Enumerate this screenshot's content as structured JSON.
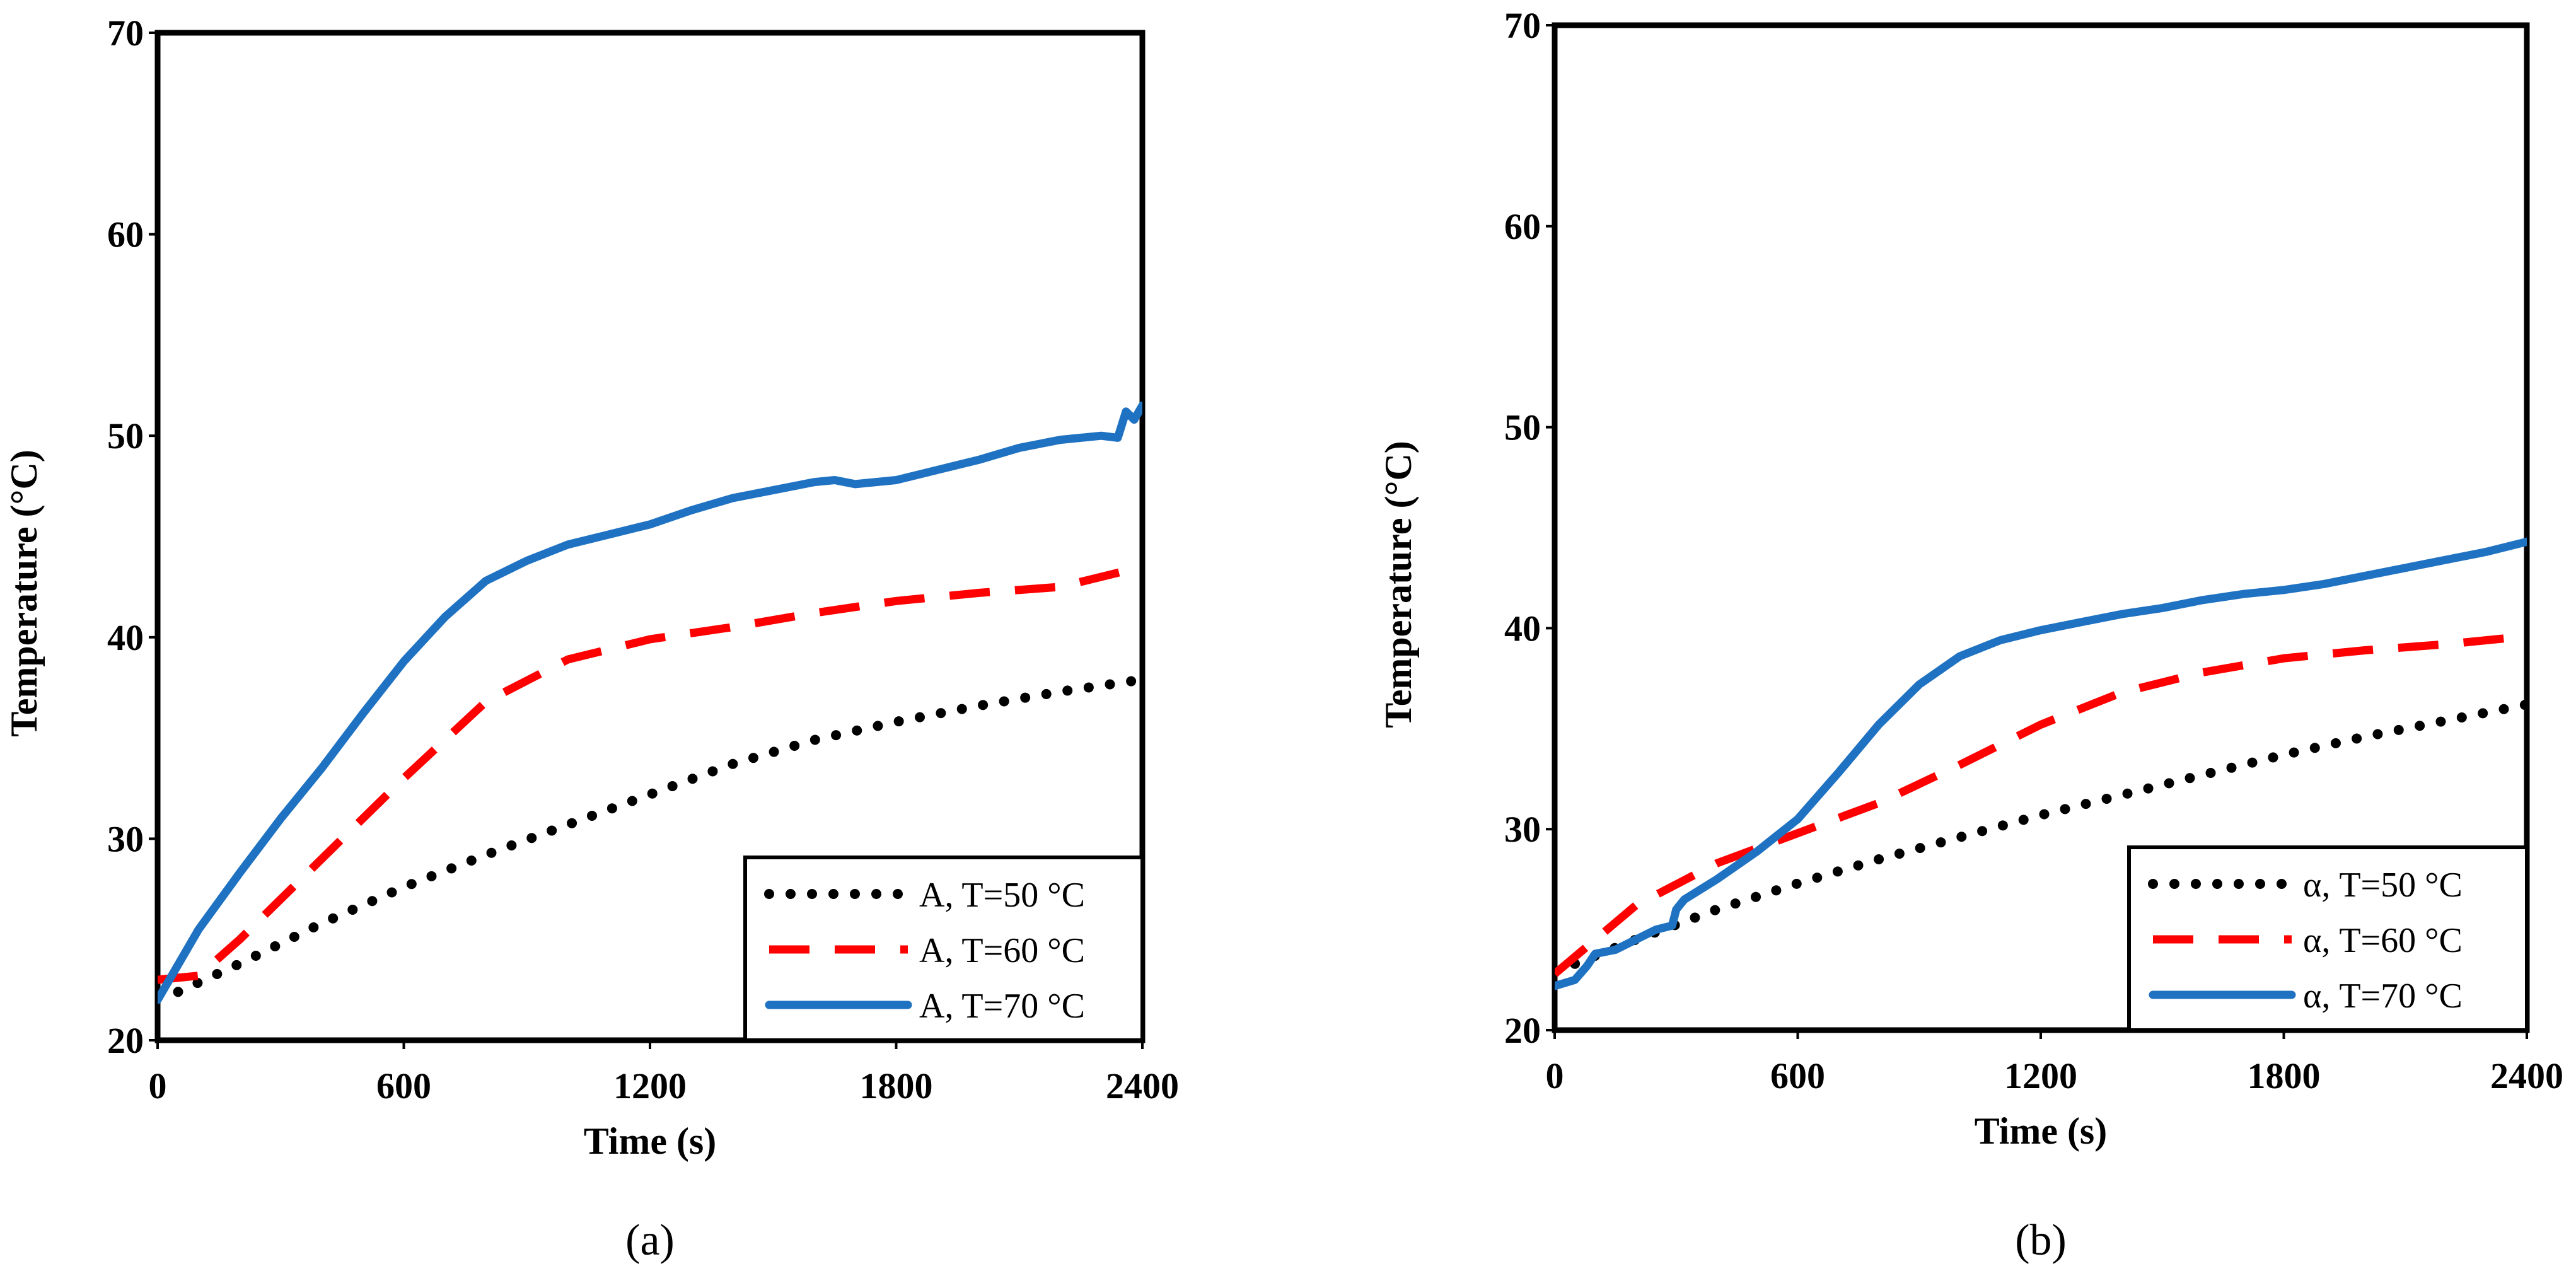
{
  "chart_data": [
    {
      "type": "line",
      "panel_label": "(a)",
      "panel_letter": "a",
      "xlabel": "Time (s)",
      "ylabel": "Temperature (°C)",
      "xlim": [
        0,
        2400
      ],
      "ylim": [
        20,
        70
      ],
      "xticks": [
        0,
        600,
        1200,
        1800,
        2400
      ],
      "yticks": [
        20,
        30,
        40,
        50,
        60,
        70
      ],
      "grid": false,
      "legend_position": "bottom-right",
      "series": [
        {
          "name": "A, T=50 °C",
          "style": "dotted",
          "color": "#000000",
          "x": [
            50,
            200,
            400,
            600,
            800,
            1000,
            1200,
            1400,
            1600,
            1800,
            2000,
            2200,
            2400
          ],
          "y": [
            22.4,
            23.8,
            25.8,
            27.6,
            29.2,
            30.7,
            32.2,
            33.7,
            34.9,
            35.8,
            36.6,
            37.3,
            37.9
          ]
        },
        {
          "name": "A, T=60 °C",
          "style": "dashed",
          "color": "#ff0000",
          "x": [
            0,
            100,
            200,
            400,
            600,
            800,
            1000,
            1200,
            1400,
            1600,
            1800,
            2000,
            2200,
            2400
          ],
          "y": [
            23.0,
            23.2,
            25.0,
            29.0,
            33.0,
            36.8,
            38.9,
            39.9,
            40.5,
            41.2,
            41.8,
            42.2,
            42.5,
            43.5
          ]
        },
        {
          "name": "A, T=70 °C",
          "style": "solid",
          "color": "#1f72c2",
          "x": [
            0,
            100,
            200,
            300,
            400,
            500,
            600,
            700,
            800,
            900,
            1000,
            1100,
            1200,
            1300,
            1400,
            1500,
            1600,
            1650,
            1700,
            1800,
            1900,
            2000,
            2100,
            2200,
            2300,
            2340,
            2360,
            2380,
            2400
          ],
          "y": [
            22.0,
            25.5,
            28.3,
            31.0,
            33.5,
            36.2,
            38.8,
            41.0,
            42.8,
            43.8,
            44.6,
            45.1,
            45.6,
            46.3,
            46.9,
            47.3,
            47.7,
            47.8,
            47.6,
            47.8,
            48.3,
            48.8,
            49.4,
            49.8,
            50.0,
            49.9,
            51.2,
            50.8,
            51.5
          ]
        }
      ]
    },
    {
      "type": "line",
      "panel_label": "(b)",
      "panel_letter": "b",
      "xlabel": "Time (s)",
      "ylabel": "Temperature (°C)",
      "xlim": [
        0,
        2400
      ],
      "ylim": [
        20,
        70
      ],
      "xticks": [
        0,
        600,
        1200,
        1800,
        2400
      ],
      "yticks": [
        20,
        30,
        40,
        50,
        60,
        70
      ],
      "grid": false,
      "legend_position": "bottom-right",
      "series": [
        {
          "name": "α, T=50 °C",
          "style": "dotted",
          "color": "#000000",
          "x": [
            50,
            200,
            400,
            600,
            800,
            1000,
            1200,
            1400,
            1600,
            1800,
            2000,
            2200,
            2400
          ],
          "y": [
            23.3,
            24.5,
            26.0,
            27.3,
            28.5,
            29.6,
            30.7,
            31.7,
            32.7,
            33.7,
            34.6,
            35.4,
            36.2
          ]
        },
        {
          "name": "α, T=60 °C",
          "style": "dashed",
          "color": "#ff0000",
          "x": [
            0,
            100,
            200,
            400,
            600,
            800,
            1000,
            1200,
            1400,
            1600,
            1800,
            2000,
            2200,
            2400
          ],
          "y": [
            22.8,
            24.5,
            26.2,
            28.3,
            29.8,
            31.3,
            33.2,
            35.2,
            36.8,
            37.8,
            38.5,
            38.9,
            39.2,
            39.6
          ]
        },
        {
          "name": "α, T=70 °C",
          "style": "solid",
          "color": "#1f72c2",
          "x": [
            0,
            50,
            80,
            100,
            150,
            200,
            250,
            290,
            300,
            320,
            400,
            500,
            600,
            700,
            800,
            900,
            1000,
            1100,
            1200,
            1300,
            1400,
            1500,
            1600,
            1700,
            1800,
            1900,
            2000,
            2100,
            2200,
            2300,
            2400
          ],
          "y": [
            22.2,
            22.5,
            23.2,
            23.8,
            24.0,
            24.5,
            25.0,
            25.2,
            26.0,
            26.5,
            27.5,
            28.9,
            30.5,
            32.8,
            35.2,
            37.2,
            38.6,
            39.4,
            39.9,
            40.3,
            40.7,
            41.0,
            41.4,
            41.7,
            41.9,
            42.2,
            42.6,
            43.0,
            43.4,
            43.8,
            44.3
          ]
        }
      ]
    }
  ]
}
